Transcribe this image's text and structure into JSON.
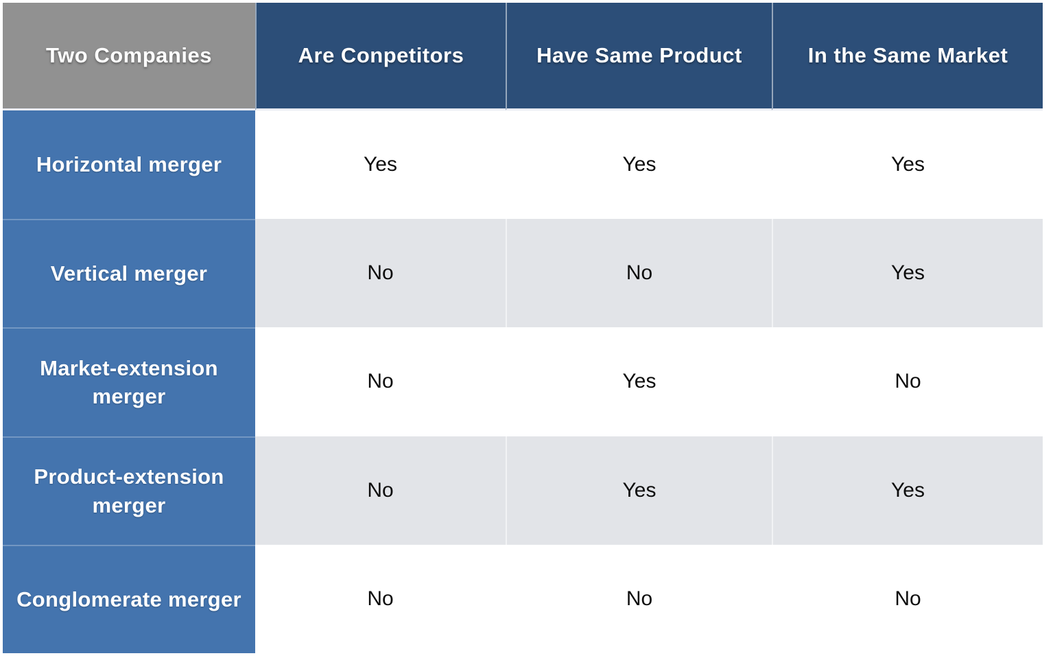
{
  "table": {
    "columns": [
      {
        "label": "Two Companies"
      },
      {
        "label": "Are Conpetitors"
      },
      {
        "label": "Have Same Product"
      },
      {
        "label": "In the Same Market"
      }
    ],
    "rows": [
      {
        "label": "Horizontal merger",
        "values": [
          "Yes",
          "Yes",
          "Yes"
        ]
      },
      {
        "label": "Vertical merger",
        "values": [
          "No",
          "No",
          "Yes"
        ]
      },
      {
        "label": "Market-extension merger",
        "values": [
          "No",
          "Yes",
          "No"
        ]
      },
      {
        "label": "Product-extension merger",
        "values": [
          "No",
          "Yes",
          "Yes"
        ]
      },
      {
        "label": "Conglomerate merger",
        "values": [
          "No",
          "No",
          "No"
        ]
      }
    ],
    "colors": {
      "header_bg": "#2c4e78",
      "corner_bg": "#919191",
      "row_header_bg": "#4474ae",
      "stripe_row_bg": "#e2e4e8",
      "plain_row_bg": "#ffffff",
      "header_text": "#ffffff",
      "body_text": "#0d0d0d"
    }
  },
  "chart_data": {
    "type": "table",
    "title": "",
    "columns": [
      "Two Companies",
      "Are Conpetitors",
      "Have Same Product",
      "In the Same Market"
    ],
    "rows": [
      [
        "Horizontal merger",
        "Yes",
        "Yes",
        "Yes"
      ],
      [
        "Vertical merger",
        "No",
        "No",
        "Yes"
      ],
      [
        "Market-extension merger",
        "No",
        "Yes",
        "No"
      ],
      [
        "Product-extension merger",
        "No",
        "Yes",
        "Yes"
      ],
      [
        "Conglomerate merger",
        "No",
        "No",
        "No"
      ]
    ]
  }
}
